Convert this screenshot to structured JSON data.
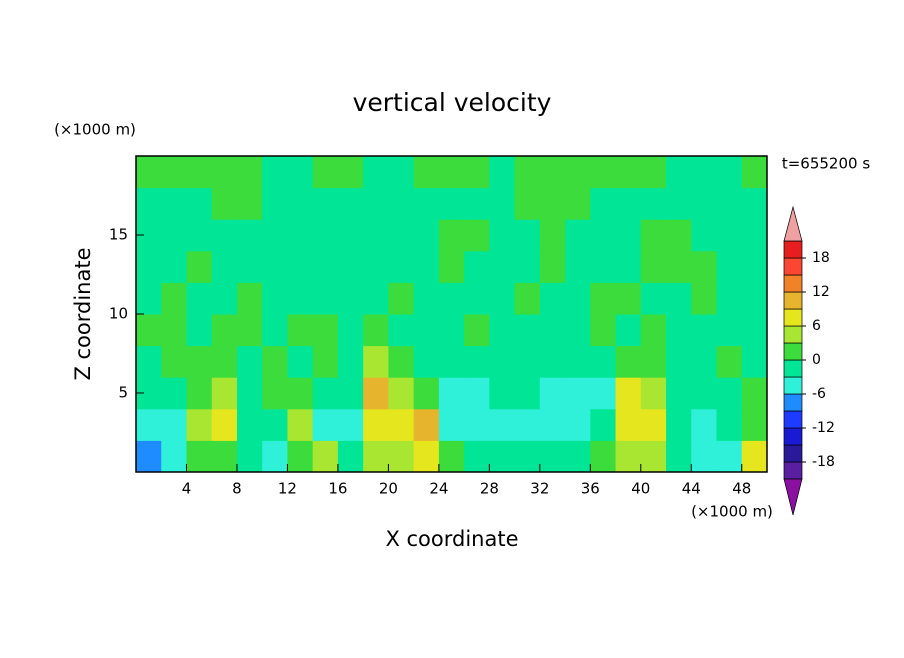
{
  "chart_data": {
    "type": "contour",
    "title": "vertical velocity",
    "xlabel": "X coordinate",
    "ylabel": "Z coordinate",
    "x_unit": "(×1000 m)",
    "y_unit": "(×1000 m)",
    "time_label": "t=655200 s",
    "xlim": [
      0,
      50
    ],
    "ylim": [
      0,
      20
    ],
    "xticks": [
      4,
      8,
      12,
      16,
      20,
      24,
      28,
      32,
      36,
      40,
      44,
      48
    ],
    "yticks": [
      5,
      10,
      15
    ],
    "x": [
      1,
      3,
      5,
      7,
      9,
      11,
      13,
      15,
      17,
      19,
      21,
      23,
      25,
      27,
      29,
      31,
      33,
      35,
      37,
      39,
      41,
      43,
      45,
      47,
      49
    ],
    "y": [
      1,
      3,
      5,
      7,
      9,
      11,
      13,
      15,
      17,
      19
    ],
    "z": [
      [
        -8,
        -4,
        1,
        1,
        -2,
        -4,
        1,
        4,
        -2,
        3,
        4,
        8,
        1,
        -2,
        -2,
        -3,
        -2,
        -1,
        1,
        4,
        3,
        -1,
        -4,
        -5,
        8
      ],
      [
        -4,
        -4,
        5,
        7,
        -3,
        -3,
        4,
        -4,
        -4,
        7,
        6,
        10,
        -4,
        -5,
        -6,
        -6,
        -4,
        -4,
        -3,
        8,
        8,
        -3,
        -6,
        -2,
        1
      ],
      [
        -2,
        -2,
        2,
        3,
        -1,
        0,
        0,
        -1,
        -2,
        10,
        5,
        2,
        -4,
        -4,
        -3,
        -3,
        -4,
        -4,
        -5,
        6,
        4,
        -1,
        -2,
        -1,
        0
      ],
      [
        -1,
        1,
        2,
        1,
        -1,
        1,
        -1,
        1,
        -1,
        4,
        2,
        -1,
        -2,
        -1,
        -1,
        -1,
        -1,
        -2,
        -1,
        1,
        1,
        -1,
        -1,
        1,
        -1
      ],
      [
        1,
        1,
        -1,
        1,
        1,
        -1,
        1,
        1,
        -1,
        1,
        -1,
        -1,
        -1,
        1,
        -1,
        -1,
        -1,
        -1,
        1,
        -1,
        1,
        -1,
        -1,
        -1,
        -1
      ],
      [
        -1,
        1,
        -1,
        -1,
        1,
        -1,
        -1,
        -1,
        -1,
        -1,
        1,
        -1,
        -1,
        -1,
        -1,
        1,
        -1,
        -1,
        1,
        1,
        -1,
        -1,
        1,
        -1,
        -1
      ],
      [
        -1,
        -1,
        1,
        -1,
        -1,
        -1,
        -1,
        -1,
        -1,
        -1,
        -1,
        -1,
        1,
        -1,
        -1,
        -1,
        1,
        -1,
        -1,
        -1,
        1,
        1,
        1,
        -1,
        -1
      ],
      [
        -1,
        -1,
        -1,
        -1,
        -1,
        -1,
        -1,
        -1,
        -1,
        -1,
        -1,
        -1,
        1,
        1,
        -1,
        -1,
        1,
        -1,
        -1,
        -1,
        1,
        1,
        -1,
        -1,
        -1
      ],
      [
        -1,
        -1,
        -1,
        1,
        1,
        -1,
        -1,
        -1,
        -1,
        -1,
        -1,
        -1,
        -1,
        -1,
        -1,
        1,
        1,
        1,
        -1,
        -1,
        -1,
        -1,
        -1,
        -1,
        -1
      ],
      [
        1,
        1,
        1,
        1,
        1,
        -1,
        -1,
        1,
        1,
        -1,
        -1,
        1,
        1,
        1,
        -1,
        1,
        1,
        1,
        1,
        1,
        1,
        -1,
        -1,
        -1,
        1
      ]
    ],
    "levels": [
      -21,
      -18,
      -15,
      -12,
      -9,
      -6,
      -3,
      0,
      3,
      6,
      9,
      12,
      15,
      18,
      21
    ],
    "colors": [
      "#8b0fa0",
      "#5a1ea0",
      "#2a1a9a",
      "#1a1ad2",
      "#1e3cff",
      "#1e8cff",
      "#2ff0d8",
      "#00e696",
      "#3cdc3c",
      "#a8e632",
      "#e6e61e",
      "#e6b42d",
      "#f08228",
      "#fa4632",
      "#e61e1e",
      "#f0a0a0"
    ],
    "cbar_ticks": [
      -18,
      -12,
      -6,
      0,
      6,
      12,
      18
    ]
  }
}
